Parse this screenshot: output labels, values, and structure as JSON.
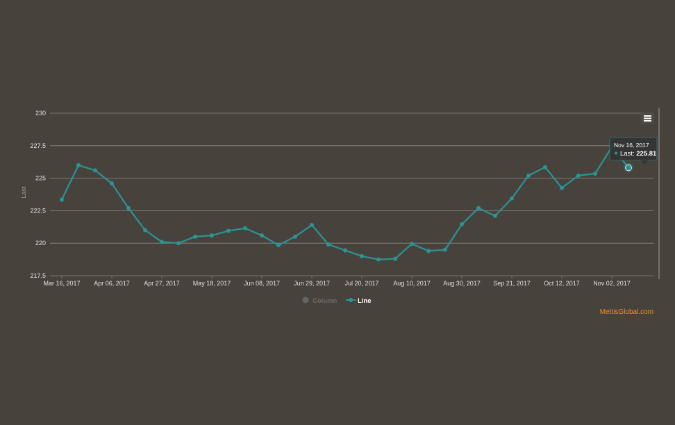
{
  "chart_data": {
    "type": "line",
    "ylabel": "Last",
    "ylim": [
      217.5,
      230
    ],
    "yticks": [
      "217.5",
      "220",
      "222.5",
      "225",
      "227.5",
      "230"
    ],
    "xticks": [
      "Mar 16, 2017",
      "Apr 06, 2017",
      "Apr 27, 2017",
      "May 18, 2017",
      "Jun 08, 2017",
      "Jun 29, 2017",
      "Jul 20, 2017",
      "Aug 10, 2017",
      "Aug 30, 2017",
      "Sep 21, 2017",
      "Oct 12, 2017",
      "Nov 02, 2017"
    ],
    "series": [
      {
        "name": "Line",
        "color": "#2a9494",
        "values": [
          223.35,
          226.0,
          225.6,
          224.6,
          222.7,
          221.0,
          220.1,
          220.0,
          220.5,
          220.6,
          220.95,
          221.15,
          220.6,
          219.85,
          220.5,
          221.4,
          219.9,
          219.45,
          219.0,
          218.75,
          218.8,
          219.95,
          219.4,
          219.5,
          221.45,
          222.7,
          222.1,
          223.45,
          225.2,
          225.85,
          224.25,
          225.2,
          225.35,
          227.4,
          225.81
        ]
      },
      {
        "name": "Column",
        "color": "#666666",
        "values": []
      }
    ],
    "legend": {
      "position": "bottom",
      "items": [
        {
          "label": "Column",
          "color": "#666666",
          "active": false
        },
        {
          "label": "Line",
          "color": "#2a9494",
          "active": true
        }
      ]
    },
    "tooltip": {
      "date": "Nov 16, 2017",
      "label": "Last:",
      "value": "225.81"
    },
    "credit": "MettisGlobal.com",
    "menu_icon": "hamburger-menu-icon"
  }
}
